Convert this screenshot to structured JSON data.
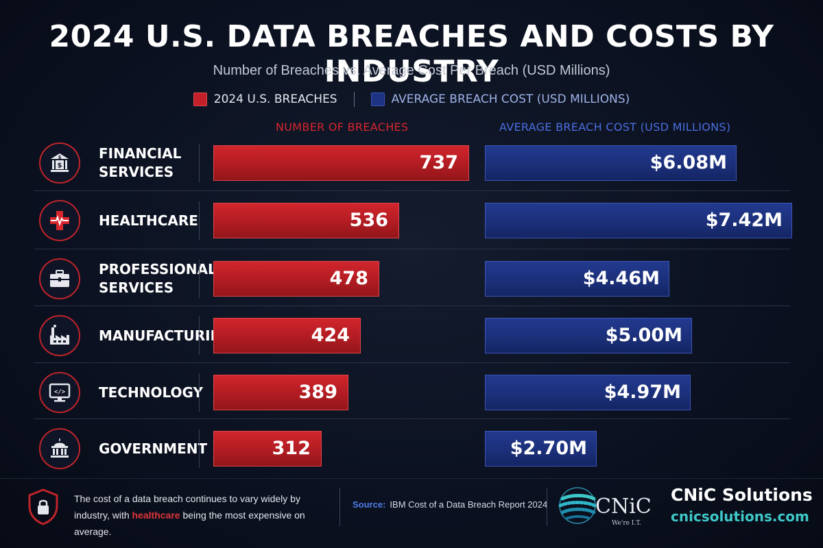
{
  "title": "2024 U.S. DATA BREACHES AND COSTS BY INDUSTRY",
  "subtitle": "Number of Breaches vs. Average Cost Per Breach (USD Millions)",
  "legend": {
    "breaches": "2024 U.S. BREACHES",
    "cost": "AVERAGE BREACH COST (USD MILLIONS)"
  },
  "columns": {
    "breaches": "NUMBER OF BREACHES",
    "cost": "AVERAGE BREACH COST (USD MILLIONS)"
  },
  "colors": {
    "breaches": "#c3202a",
    "cost": "#1e3384",
    "breaches_text": "#d8262e",
    "cost_text": "#4b6ee0",
    "accent_teal": "#3ec8c8"
  },
  "industries": [
    {
      "label_lines": [
        "FINANCIAL",
        "SERVICES"
      ],
      "icon": "bank-icon",
      "breaches_label": "737",
      "cost_label": "$6.08M"
    },
    {
      "label_lines": [
        "HEALTHCARE"
      ],
      "icon": "medical-cross-icon",
      "breaches_label": "536",
      "cost_label": "$7.42M"
    },
    {
      "label_lines": [
        "PROFESSIONAL",
        "SERVICES"
      ],
      "icon": "briefcase-icon",
      "breaches_label": "478",
      "cost_label": "$4.46M"
    },
    {
      "label_lines": [
        "MANUFACTURING"
      ],
      "icon": "factory-icon",
      "breaches_label": "424",
      "cost_label": "$5.00M"
    },
    {
      "label_lines": [
        "TECHNOLOGY"
      ],
      "icon": "monitor-code-icon",
      "breaches_label": "389",
      "cost_label": "$4.97M"
    },
    {
      "label_lines": [
        "GOVERNMENT"
      ],
      "icon": "government-building-icon",
      "breaches_label": "312",
      "cost_label": "$2.70M"
    }
  ],
  "chart_data": {
    "type": "bar",
    "orientation": "horizontal",
    "categories": [
      "FINANCIAL SERVICES",
      "HEALTHCARE",
      "PROFESSIONAL SERVICES",
      "MANUFACTURING",
      "TECHNOLOGY",
      "GOVERNMENT"
    ],
    "series": [
      {
        "name": "2024 U.S. BREACHES",
        "values": [
          737,
          536,
          478,
          424,
          389,
          312
        ],
        "color": "#c3202a"
      },
      {
        "name": "AVERAGE BREACH COST (USD MILLIONS)",
        "values": [
          6.08,
          7.42,
          4.46,
          5.0,
          4.97,
          2.7
        ],
        "color": "#1e3384"
      }
    ],
    "title": "2024 U.S. DATA BREACHES AND COSTS BY INDUSTRY",
    "subtitle": "Number of Breaches vs. Average Cost Per Breach (USD Millions)",
    "legend_position": "top-center",
    "grid": false
  },
  "footer": {
    "note_before": "The cost of a data breach continues to vary widely by industry, with ",
    "note_highlight": "healthcare",
    "note_after": " being the most expensive on average.",
    "source_label": "Source:",
    "source_text": "IBM Cost of a Data Breach Report 2024",
    "logo_text": "CNiC",
    "logo_tagline": "We're I.T.",
    "brand_name": "CNiC Solutions",
    "website": "cnicsolutions.com",
    "note_icon": "shield-lock-icon"
  }
}
